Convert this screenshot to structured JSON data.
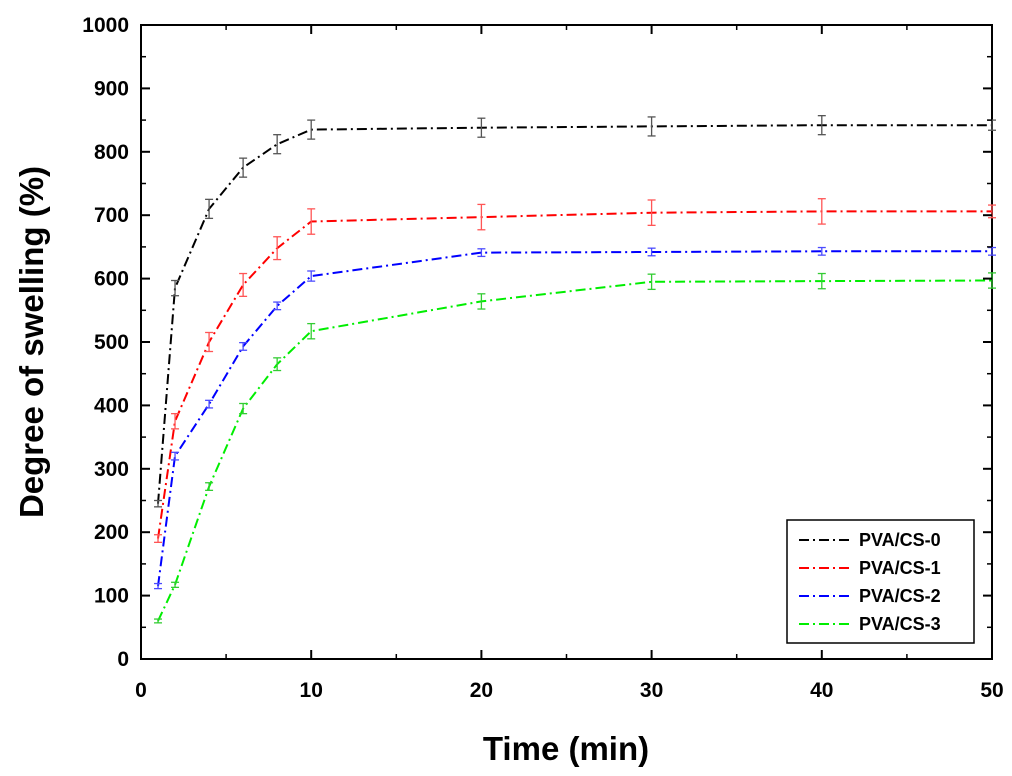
{
  "chart_data": {
    "type": "line",
    "title": "",
    "xlabel": "Time (min)",
    "ylabel": "Degree of swelling (%)",
    "xlim": [
      0,
      50
    ],
    "ylim": [
      0,
      1000
    ],
    "xticks": [
      "0",
      "10",
      "20",
      "30",
      "40",
      "50"
    ],
    "yticks": [
      "0",
      "100",
      "200",
      "300",
      "400",
      "500",
      "600",
      "700",
      "800",
      "900",
      "1000"
    ],
    "x": [
      1,
      2,
      4,
      6,
      8,
      10,
      20,
      30,
      40,
      50
    ],
    "legend_position": "bottom-right",
    "series": [
      {
        "name": "PVA/CS-0",
        "color": "#000000",
        "errcolor": "#555555",
        "values": [
          245,
          585,
          710,
          775,
          812,
          835,
          838,
          840,
          842,
          842
        ],
        "errors": [
          5,
          12,
          15,
          15,
          15,
          15,
          15,
          15,
          15,
          8
        ]
      },
      {
        "name": "PVA/CS-1",
        "color": "#ff0000",
        "errcolor": "#ff5555",
        "values": [
          190,
          375,
          500,
          590,
          648,
          690,
          697,
          704,
          706,
          706
        ],
        "errors": [
          6,
          12,
          15,
          18,
          18,
          20,
          20,
          20,
          20,
          10
        ]
      },
      {
        "name": "PVA/CS-2",
        "color": "#0000ff",
        "errcolor": "#4b4bff",
        "values": [
          115,
          320,
          402,
          493,
          557,
          604,
          641,
          642,
          643,
          643
        ],
        "errors": [
          4,
          6,
          6,
          6,
          6,
          8,
          6,
          6,
          6,
          6
        ]
      },
      {
        "name": "PVA/CS-3",
        "color": "#00ee00",
        "errcolor": "#33cc33",
        "values": [
          60,
          117,
          272,
          395,
          465,
          517,
          564,
          595,
          596,
          597
        ],
        "errors": [
          3,
          4,
          6,
          8,
          10,
          12,
          12,
          12,
          12,
          12
        ]
      }
    ]
  }
}
